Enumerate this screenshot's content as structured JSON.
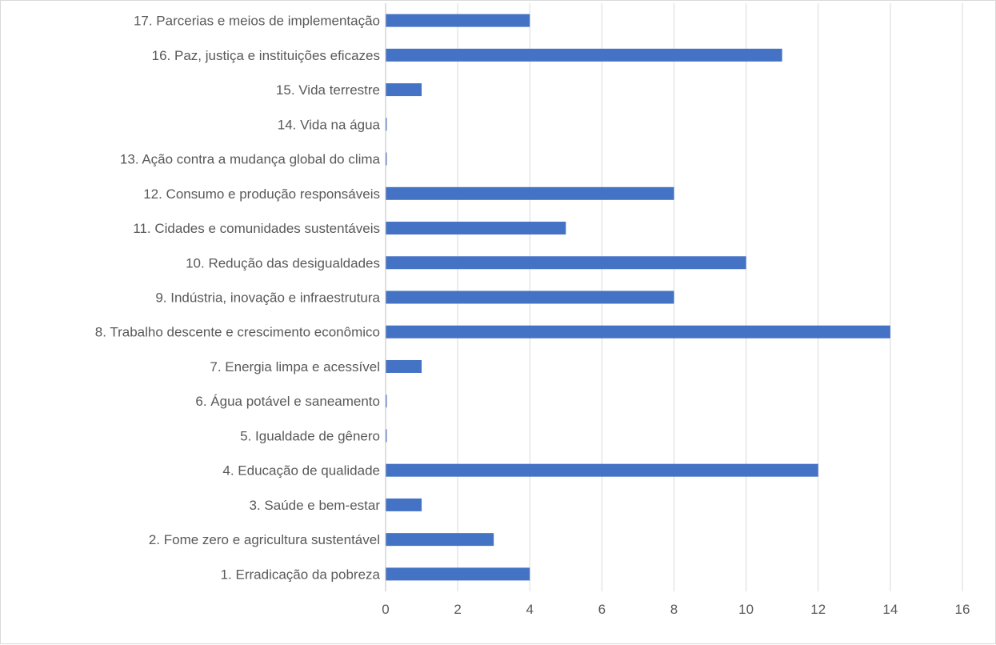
{
  "chart_data": {
    "type": "bar",
    "orientation": "horizontal",
    "title": "",
    "xlabel": "",
    "ylabel": "",
    "xlim": [
      0,
      16
    ],
    "x_ticks": [
      0,
      2,
      4,
      6,
      8,
      10,
      12,
      14,
      16
    ],
    "grid": "vertical",
    "legend": "none",
    "bar_color": "#4472C4",
    "categories": [
      "1. Erradicação da pobreza",
      "2. Fome zero e agricultura sustentável",
      "3. Saúde e bem-estar",
      "4. Educação de qualidade",
      "5. Igualdade de gênero",
      "6. Água potável e saneamento",
      "7. Energia limpa e acessível",
      "8. Trabalho descente e crescimento econômico",
      "9. Indústria, inovação e infraestrutura",
      "10. Redução das desigualdades",
      "11. Cidades e comunidades sustentáveis",
      "12. Consumo e produção responsáveis",
      "13. Ação contra a mudança global do clima",
      "14. Vida na água",
      "15. Vida terrestre",
      "16. Paz, justiça e instituições eficazes",
      "17. Parcerias e meios de implementação"
    ],
    "values": [
      4,
      3,
      1,
      12,
      0,
      0,
      1,
      14,
      8,
      10,
      5,
      8,
      0,
      0,
      1,
      11,
      4
    ]
  }
}
